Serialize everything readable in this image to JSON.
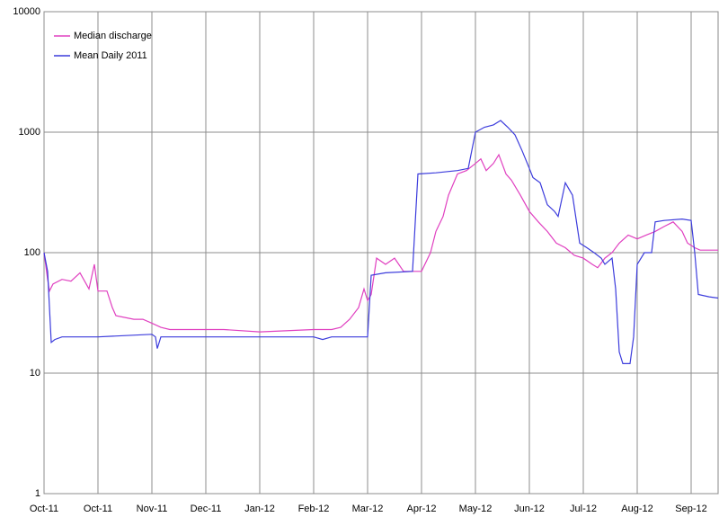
{
  "chart_data": {
    "type": "line",
    "log_scale": true,
    "grid": true,
    "legend": "upper-left",
    "x": [
      0,
      2,
      3,
      5,
      10,
      15,
      20,
      25,
      28,
      30,
      35,
      38,
      40,
      50,
      55,
      60,
      65,
      70,
      80,
      100,
      120,
      150,
      160,
      165,
      170,
      175,
      178,
      180,
      182,
      185,
      190,
      195,
      200,
      205,
      210,
      215,
      218,
      222,
      225,
      230,
      235,
      240,
      243,
      246,
      250,
      253,
      257,
      260,
      265,
      270,
      275,
      280,
      285,
      290,
      295,
      300,
      305,
      308,
      312,
      316,
      320,
      325,
      330,
      335,
      340,
      345,
      350,
      355,
      358,
      362,
      365,
      375
    ],
    "xlim": [
      0,
      375
    ],
    "xticks": [
      {
        "value": 0,
        "label": "Oct-11"
      },
      {
        "value": 30,
        "label": "Oct-11"
      },
      {
        "value": 60,
        "label": "Nov-11"
      },
      {
        "value": 90,
        "label": "Dec-11"
      },
      {
        "value": 120,
        "label": "Jan-12"
      },
      {
        "value": 150,
        "label": "Feb-12"
      },
      {
        "value": 180,
        "label": "Mar-12"
      },
      {
        "value": 210,
        "label": "Apr-12"
      },
      {
        "value": 240,
        "label": "May-12"
      },
      {
        "value": 270,
        "label": "Jun-12"
      },
      {
        "value": 300,
        "label": "Jul-12"
      },
      {
        "value": 330,
        "label": "Aug-12"
      },
      {
        "value": 360,
        "label": "Sep-12"
      }
    ],
    "ylim": [
      1,
      10000
    ],
    "yticks": [
      1,
      10,
      100,
      1000,
      10000
    ],
    "series": [
      {
        "name": "Median discharge",
        "color": "#e040c0",
        "values": [
          100,
          60,
          48,
          55,
          60,
          58,
          68,
          50,
          80,
          48,
          48,
          35,
          30,
          28,
          28,
          26,
          24,
          23,
          23,
          23,
          22,
          23,
          23,
          24,
          28,
          35,
          50,
          40,
          45,
          90,
          80,
          90,
          70,
          70,
          70,
          100,
          150,
          200,
          300,
          450,
          480,
          550,
          600,
          480,
          550,
          650,
          450,
          400,
          300,
          220,
          180,
          150,
          120,
          110,
          95,
          90,
          80,
          75,
          90,
          100,
          120,
          140,
          130,
          140,
          150,
          165,
          180,
          150,
          120,
          110,
          105,
          105
        ]
      },
      {
        "name": "Mean Daily 2011",
        "color": "#3c3cdc",
        "x": [
          0,
          2,
          4,
          6,
          10,
          30,
          60,
          62,
          63,
          65,
          70,
          120,
          150,
          155,
          160,
          180,
          182,
          190,
          205,
          208,
          218,
          230,
          236,
          240,
          245,
          250,
          254,
          258,
          262,
          266,
          270,
          272,
          276,
          280,
          284,
          286,
          290,
          294,
          298,
          302,
          306,
          310,
          312,
          316,
          318,
          320,
          322,
          326,
          328,
          330,
          334,
          338,
          340,
          345,
          355,
          360,
          362,
          364,
          370,
          375
        ],
        "values": [
          100,
          70,
          18,
          19,
          20,
          20,
          21,
          20,
          16,
          20,
          20,
          20,
          20,
          19,
          20,
          20,
          65,
          68,
          70,
          450,
          460,
          480,
          500,
          1000,
          1100,
          1150,
          1250,
          1100,
          950,
          700,
          500,
          420,
          380,
          250,
          220,
          200,
          380,
          300,
          120,
          110,
          100,
          90,
          80,
          90,
          50,
          15,
          12,
          12,
          20,
          80,
          100,
          100,
          180,
          185,
          190,
          185,
          100,
          45,
          43,
          42
        ]
      }
    ]
  }
}
